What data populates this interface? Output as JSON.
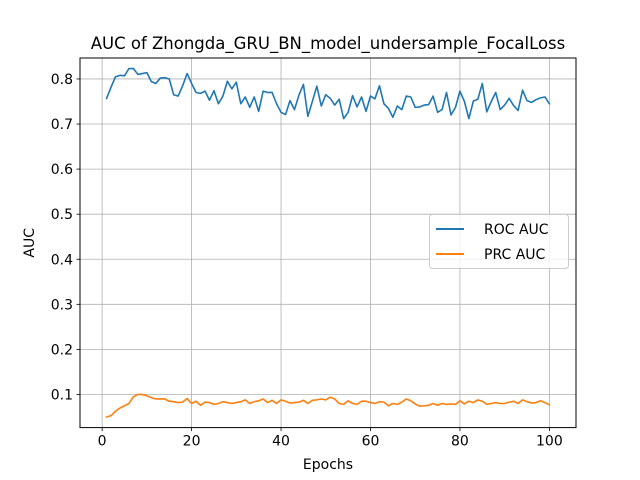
{
  "chart_data": {
    "type": "line",
    "title": "AUC of Zhongda_GRU_BN_model_undersample_FocalLoss",
    "xlabel": "Epochs",
    "ylabel": "AUC",
    "xlim": [
      -4.95,
      105.95
    ],
    "ylim": [
      0.0265,
      0.8465
    ],
    "xticks": [
      0,
      20,
      40,
      60,
      80,
      100
    ],
    "yticks": [
      0.1,
      0.2,
      0.3,
      0.4,
      0.5,
      0.6,
      0.7,
      0.8
    ],
    "grid": true,
    "legend_position": "center-right",
    "x": [
      1,
      2,
      3,
      4,
      5,
      6,
      7,
      8,
      9,
      10,
      11,
      12,
      13,
      14,
      15,
      16,
      17,
      18,
      19,
      20,
      21,
      22,
      23,
      24,
      25,
      26,
      27,
      28,
      29,
      30,
      31,
      32,
      33,
      34,
      35,
      36,
      37,
      38,
      39,
      40,
      41,
      42,
      43,
      44,
      45,
      46,
      47,
      48,
      49,
      50,
      51,
      52,
      53,
      54,
      55,
      56,
      57,
      58,
      59,
      60,
      61,
      62,
      63,
      64,
      65,
      66,
      67,
      68,
      69,
      70,
      71,
      72,
      73,
      74,
      75,
      76,
      77,
      78,
      79,
      80,
      81,
      82,
      83,
      84,
      85,
      86,
      87,
      88,
      89,
      90,
      91,
      92,
      93,
      94,
      95,
      96,
      97,
      98,
      99,
      100
    ],
    "series": [
      {
        "name": "ROC AUC",
        "color": "#1f77b4",
        "values": [
          0.757,
          0.782,
          0.805,
          0.808,
          0.807,
          0.823,
          0.823,
          0.81,
          0.812,
          0.814,
          0.794,
          0.79,
          0.802,
          0.803,
          0.8,
          0.765,
          0.762,
          0.785,
          0.812,
          0.79,
          0.77,
          0.768,
          0.773,
          0.753,
          0.774,
          0.745,
          0.762,
          0.795,
          0.778,
          0.793,
          0.745,
          0.76,
          0.737,
          0.76,
          0.728,
          0.773,
          0.77,
          0.77,
          0.745,
          0.726,
          0.721,
          0.752,
          0.732,
          0.764,
          0.788,
          0.717,
          0.75,
          0.784,
          0.74,
          0.765,
          0.757,
          0.742,
          0.755,
          0.712,
          0.726,
          0.763,
          0.738,
          0.76,
          0.728,
          0.762,
          0.756,
          0.785,
          0.745,
          0.735,
          0.715,
          0.74,
          0.732,
          0.762,
          0.76,
          0.737,
          0.738,
          0.742,
          0.743,
          0.762,
          0.726,
          0.732,
          0.77,
          0.72,
          0.737,
          0.773,
          0.75,
          0.712,
          0.751,
          0.755,
          0.79,
          0.727,
          0.75,
          0.77,
          0.732,
          0.742,
          0.757,
          0.741,
          0.73,
          0.775,
          0.752,
          0.748,
          0.754,
          0.758,
          0.76,
          0.745
        ]
      },
      {
        "name": "PRC AUC",
        "color": "#ff7f0e",
        "values": [
          0.05,
          0.053,
          0.063,
          0.07,
          0.075,
          0.08,
          0.095,
          0.1,
          0.1,
          0.097,
          0.093,
          0.09,
          0.09,
          0.09,
          0.085,
          0.084,
          0.082,
          0.083,
          0.091,
          0.08,
          0.085,
          0.076,
          0.083,
          0.082,
          0.078,
          0.08,
          0.084,
          0.082,
          0.08,
          0.082,
          0.084,
          0.088,
          0.08,
          0.084,
          0.086,
          0.09,
          0.082,
          0.087,
          0.08,
          0.088,
          0.085,
          0.081,
          0.082,
          0.083,
          0.087,
          0.08,
          0.087,
          0.088,
          0.09,
          0.088,
          0.094,
          0.09,
          0.08,
          0.078,
          0.086,
          0.08,
          0.078,
          0.085,
          0.085,
          0.082,
          0.08,
          0.084,
          0.083,
          0.075,
          0.08,
          0.078,
          0.083,
          0.09,
          0.086,
          0.079,
          0.074,
          0.075,
          0.076,
          0.08,
          0.076,
          0.08,
          0.078,
          0.079,
          0.078,
          0.086,
          0.079,
          0.085,
          0.082,
          0.088,
          0.085,
          0.078,
          0.08,
          0.082,
          0.08,
          0.08,
          0.083,
          0.085,
          0.08,
          0.088,
          0.084,
          0.081,
          0.082,
          0.086,
          0.082,
          0.077
        ]
      }
    ]
  }
}
